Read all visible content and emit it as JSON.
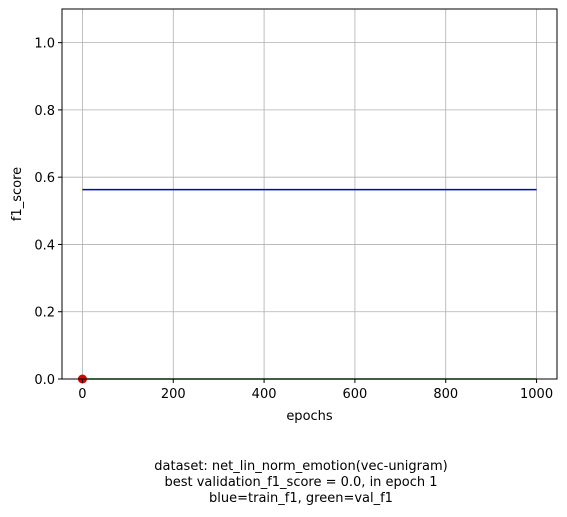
{
  "chart_data": {
    "type": "line",
    "title": "",
    "xlabel": "epochs",
    "ylabel": "f1_score",
    "xlim": [
      -45,
      1045
    ],
    "ylim": [
      0,
      1.1
    ],
    "xticks": [
      0,
      200,
      400,
      600,
      800,
      1000
    ],
    "yticks": [
      0.0,
      0.2,
      0.4,
      0.6,
      0.8,
      1.0
    ],
    "xtick_labels": [
      "0",
      "200",
      "400",
      "600",
      "800",
      "1000"
    ],
    "ytick_labels": [
      "0.0",
      "0.2",
      "0.4",
      "0.6",
      "0.8",
      "1.0"
    ],
    "grid": true,
    "series": [
      {
        "color": "#0000cc",
        "x": [
          0,
          1000
        ],
        "y": [
          0.563,
          0.563
        ]
      },
      {
        "color": "#007a00",
        "x": [
          0,
          1000
        ],
        "y": [
          0.0,
          0.0
        ]
      }
    ],
    "marker": {
      "color": "#dd0000",
      "x": 0,
      "y": 0.0
    }
  },
  "caption": {
    "line1": "dataset: net_lin_norm_emotion(vec-unigram)",
    "line2": "best validation_f1_score = 0.0, in epoch 1",
    "line3": "blue=train_f1, green=val_f1"
  }
}
